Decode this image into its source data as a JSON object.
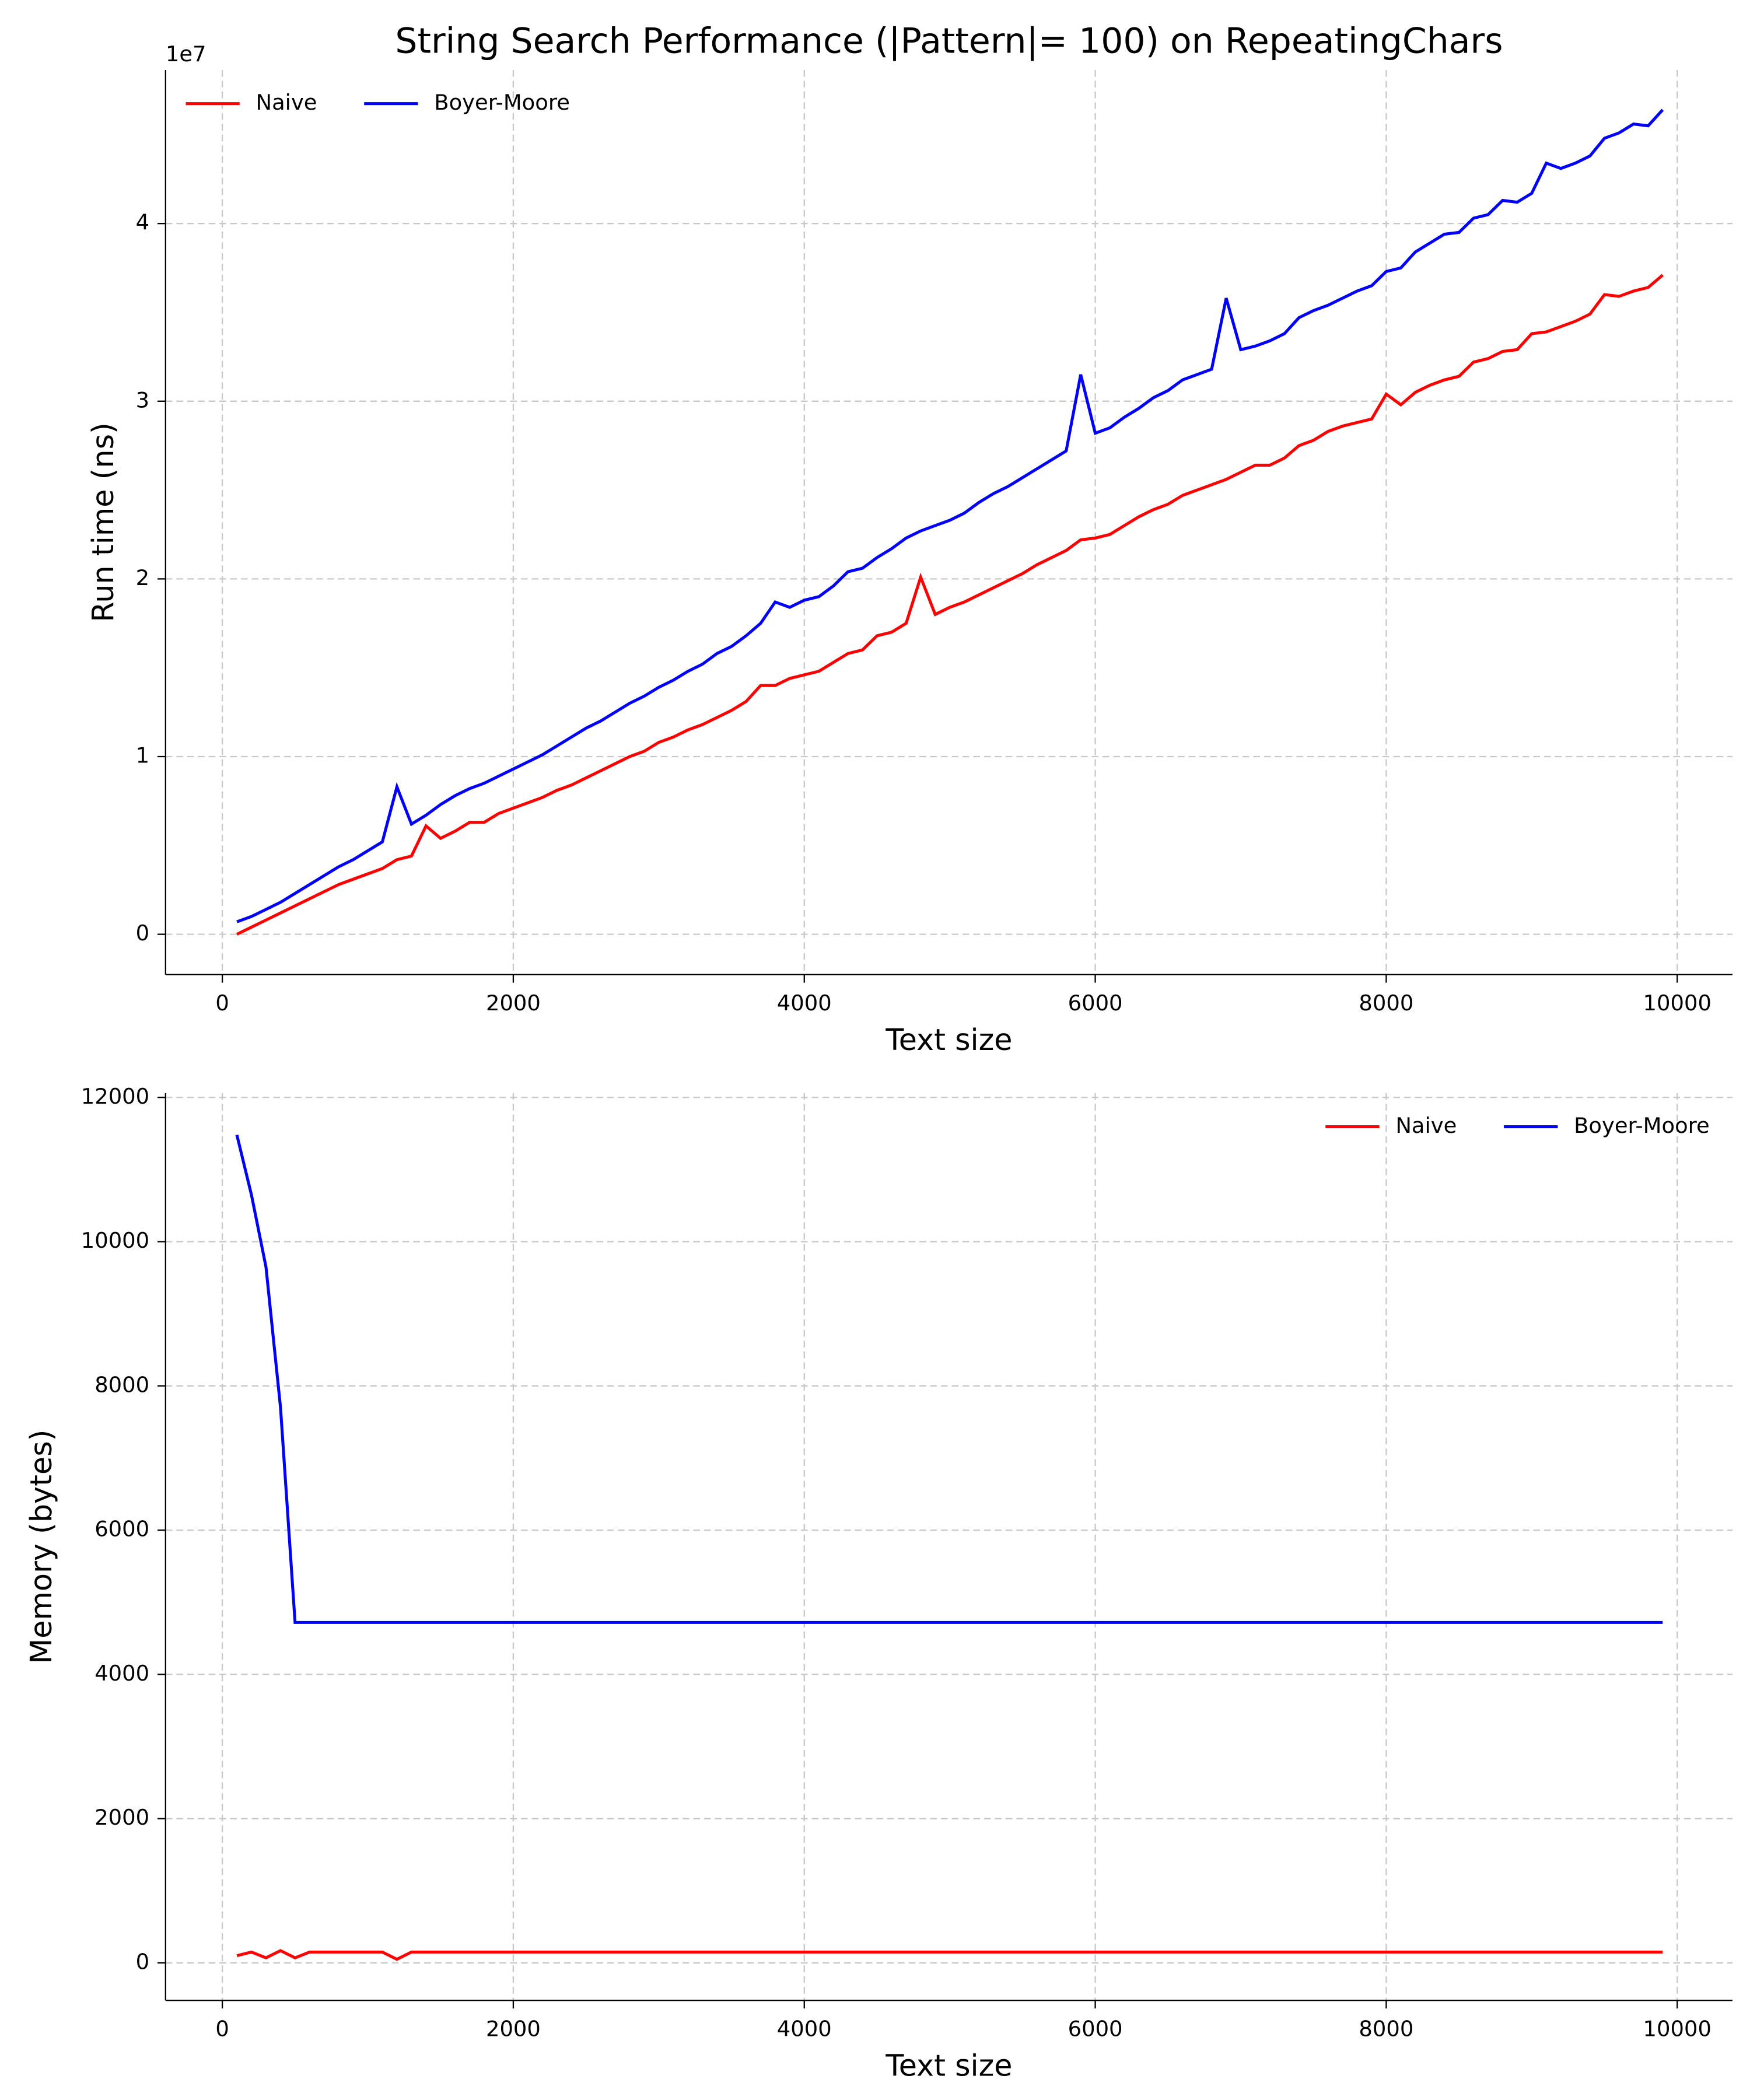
{
  "chart_data": [
    {
      "type": "line",
      "title": "String Search Performance (|Pattern|= 100) on RepeatingChars",
      "xlabel": "Text size",
      "ylabel": "Run time (ns)",
      "offset_label": "1e7",
      "x": [
        100,
        200,
        300,
        400,
        500,
        600,
        700,
        800,
        900,
        1000,
        1100,
        1200,
        1300,
        1400,
        1500,
        1600,
        1700,
        1800,
        1900,
        2000,
        2100,
        2200,
        2300,
        2400,
        2500,
        2600,
        2700,
        2800,
        2900,
        3000,
        3100,
        3200,
        3300,
        3400,
        3500,
        3600,
        3700,
        3800,
        3900,
        4000,
        4100,
        4200,
        4300,
        4400,
        4500,
        4600,
        4700,
        4800,
        4900,
        5000,
        5100,
        5200,
        5300,
        5400,
        5500,
        5600,
        5700,
        5800,
        5900,
        6000,
        6100,
        6200,
        6300,
        6400,
        6500,
        6600,
        6700,
        6800,
        6900,
        7000,
        7100,
        7200,
        7300,
        7400,
        7500,
        7600,
        7700,
        7800,
        7900,
        8000,
        8100,
        8200,
        8300,
        8400,
        8500,
        8600,
        8700,
        8800,
        8900,
        9000,
        9100,
        9200,
        9300,
        9400,
        9500,
        9600,
        9700,
        9800,
        9900
      ],
      "series": [
        {
          "name": "Naive",
          "color": "#ff0000",
          "values": [
            0.0,
            0.04,
            0.08,
            0.12,
            0.16,
            0.2,
            0.24,
            0.28,
            0.31,
            0.34,
            0.37,
            0.42,
            0.44,
            0.61,
            0.54,
            0.58,
            0.63,
            0.63,
            0.68,
            0.71,
            0.74,
            0.77,
            0.81,
            0.84,
            0.88,
            0.92,
            0.96,
            1.0,
            1.03,
            1.08,
            1.11,
            1.15,
            1.18,
            1.22,
            1.26,
            1.31,
            1.4,
            1.4,
            1.44,
            1.46,
            1.48,
            1.53,
            1.58,
            1.6,
            1.68,
            1.7,
            1.75,
            2.01,
            1.8,
            1.84,
            1.87,
            1.91,
            1.95,
            1.99,
            2.03,
            2.08,
            2.12,
            2.16,
            2.22,
            2.23,
            2.25,
            2.3,
            2.35,
            2.39,
            2.42,
            2.47,
            2.5,
            2.53,
            2.56,
            2.6,
            2.64,
            2.64,
            2.68,
            2.75,
            2.78,
            2.83,
            2.86,
            2.88,
            2.9,
            3.04,
            2.98,
            3.05,
            3.09,
            3.12,
            3.14,
            3.22,
            3.24,
            3.28,
            3.29,
            3.38,
            3.39,
            3.42,
            3.45,
            3.49,
            3.6,
            3.59,
            3.62,
            3.64,
            3.71
          ]
        },
        {
          "name": "Boyer-Moore",
          "color": "#0000ff",
          "values": [
            0.07,
            0.1,
            0.14,
            0.18,
            0.23,
            0.28,
            0.33,
            0.38,
            0.42,
            0.47,
            0.52,
            0.83,
            0.62,
            0.67,
            0.73,
            0.78,
            0.82,
            0.85,
            0.89,
            0.93,
            0.97,
            1.01,
            1.06,
            1.11,
            1.16,
            1.2,
            1.25,
            1.3,
            1.34,
            1.39,
            1.43,
            1.48,
            1.52,
            1.58,
            1.62,
            1.68,
            1.75,
            1.87,
            1.84,
            1.88,
            1.9,
            1.96,
            2.04,
            2.06,
            2.12,
            2.17,
            2.23,
            2.27,
            2.3,
            2.33,
            2.37,
            2.43,
            2.48,
            2.52,
            2.57,
            2.62,
            2.67,
            2.72,
            3.15,
            2.82,
            2.85,
            2.91,
            2.96,
            3.02,
            3.06,
            3.12,
            3.15,
            3.18,
            3.58,
            3.29,
            3.31,
            3.34,
            3.38,
            3.47,
            3.51,
            3.54,
            3.58,
            3.62,
            3.65,
            3.73,
            3.75,
            3.84,
            3.89,
            3.94,
            3.95,
            4.03,
            4.05,
            4.13,
            4.12,
            4.17,
            4.34,
            4.31,
            4.34,
            4.38,
            4.48,
            4.51,
            4.56,
            4.55,
            4.64
          ]
        }
      ],
      "xlim": [
        -390,
        10380
      ],
      "ylim": [
        -0.227,
        4.864
      ],
      "xticks": [
        0,
        2000,
        4000,
        6000,
        8000,
        10000
      ],
      "yticks": [
        0,
        1,
        2,
        3,
        4
      ],
      "grid": true,
      "legend": "upper left"
    },
    {
      "type": "line",
      "xlabel": "Text size",
      "ylabel": "Memory (bytes)",
      "x": [
        100,
        200,
        300,
        400,
        500,
        600,
        700,
        800,
        900,
        1000,
        1100,
        1200,
        1300,
        1400,
        1500,
        1600,
        1700,
        1800,
        1900,
        2000,
        2100,
        2200,
        2300,
        2400,
        2500,
        2600,
        2700,
        2800,
        2900,
        3000,
        3100,
        3200,
        3300,
        3400,
        3500,
        3600,
        3700,
        3800,
        3900,
        4000,
        4100,
        4200,
        4300,
        4400,
        4500,
        4600,
        4700,
        4800,
        4900,
        5000,
        5100,
        5200,
        5300,
        5400,
        5500,
        5600,
        5700,
        5800,
        5900,
        6000,
        6100,
        6200,
        6300,
        6400,
        6500,
        6600,
        6700,
        6800,
        6900,
        7000,
        7100,
        7200,
        7300,
        7400,
        7500,
        7600,
        7700,
        7800,
        7900,
        8000,
        8100,
        8200,
        8300,
        8400,
        8500,
        8600,
        8700,
        8800,
        8900,
        9000,
        9100,
        9200,
        9300,
        9400,
        9500,
        9600,
        9700,
        9800,
        9900
      ],
      "series": [
        {
          "name": "Naive",
          "color": "#ff0000",
          "values": [
            100,
            150,
            70,
            170,
            70,
            150,
            150,
            150,
            150,
            150,
            150,
            50,
            150,
            150,
            150,
            150,
            150,
            150,
            150,
            150,
            150,
            150,
            150,
            150,
            150,
            150,
            150,
            150,
            150,
            150,
            150,
            150,
            150,
            150,
            150,
            150,
            150,
            150,
            150,
            150,
            150,
            150,
            150,
            150,
            150,
            150,
            150,
            150,
            150,
            150,
            150,
            150,
            150,
            150,
            150,
            150,
            150,
            150,
            150,
            150,
            150,
            150,
            150,
            150,
            150,
            150,
            150,
            150,
            150,
            150,
            150,
            150,
            150,
            150,
            150,
            150,
            150,
            150,
            150,
            150,
            150,
            150,
            150,
            150,
            150,
            150,
            150,
            150,
            150,
            150,
            150,
            150,
            150,
            150,
            150,
            150,
            150,
            150,
            150
          ]
        },
        {
          "name": "Boyer-Moore",
          "color": "#0000ff",
          "values": [
            11480,
            10650,
            9650,
            7700,
            4720,
            4720,
            4720,
            4720,
            4720,
            4720,
            4720,
            4720,
            4720,
            4720,
            4720,
            4720,
            4720,
            4720,
            4720,
            4720,
            4720,
            4720,
            4720,
            4720,
            4720,
            4720,
            4720,
            4720,
            4720,
            4720,
            4720,
            4720,
            4720,
            4720,
            4720,
            4720,
            4720,
            4720,
            4720,
            4720,
            4720,
            4720,
            4720,
            4720,
            4720,
            4720,
            4720,
            4720,
            4720,
            4720,
            4720,
            4720,
            4720,
            4720,
            4720,
            4720,
            4720,
            4720,
            4720,
            4720,
            4720,
            4720,
            4720,
            4720,
            4720,
            4720,
            4720,
            4720,
            4720,
            4720,
            4720,
            4720,
            4720,
            4720,
            4720,
            4720,
            4720,
            4720,
            4720,
            4720,
            4720,
            4720,
            4720,
            4720,
            4720,
            4720,
            4720,
            4720,
            4720,
            4720,
            4720,
            4720,
            4720,
            4720,
            4720,
            4720,
            4720,
            4720,
            4720
          ]
        }
      ],
      "xlim": [
        -390,
        10380
      ],
      "ylim": [
        -520,
        12060
      ],
      "xticks": [
        0,
        2000,
        4000,
        6000,
        8000,
        10000
      ],
      "yticks": [
        0,
        2000,
        4000,
        6000,
        8000,
        10000,
        12000
      ],
      "grid": true,
      "legend": "upper right"
    }
  ]
}
